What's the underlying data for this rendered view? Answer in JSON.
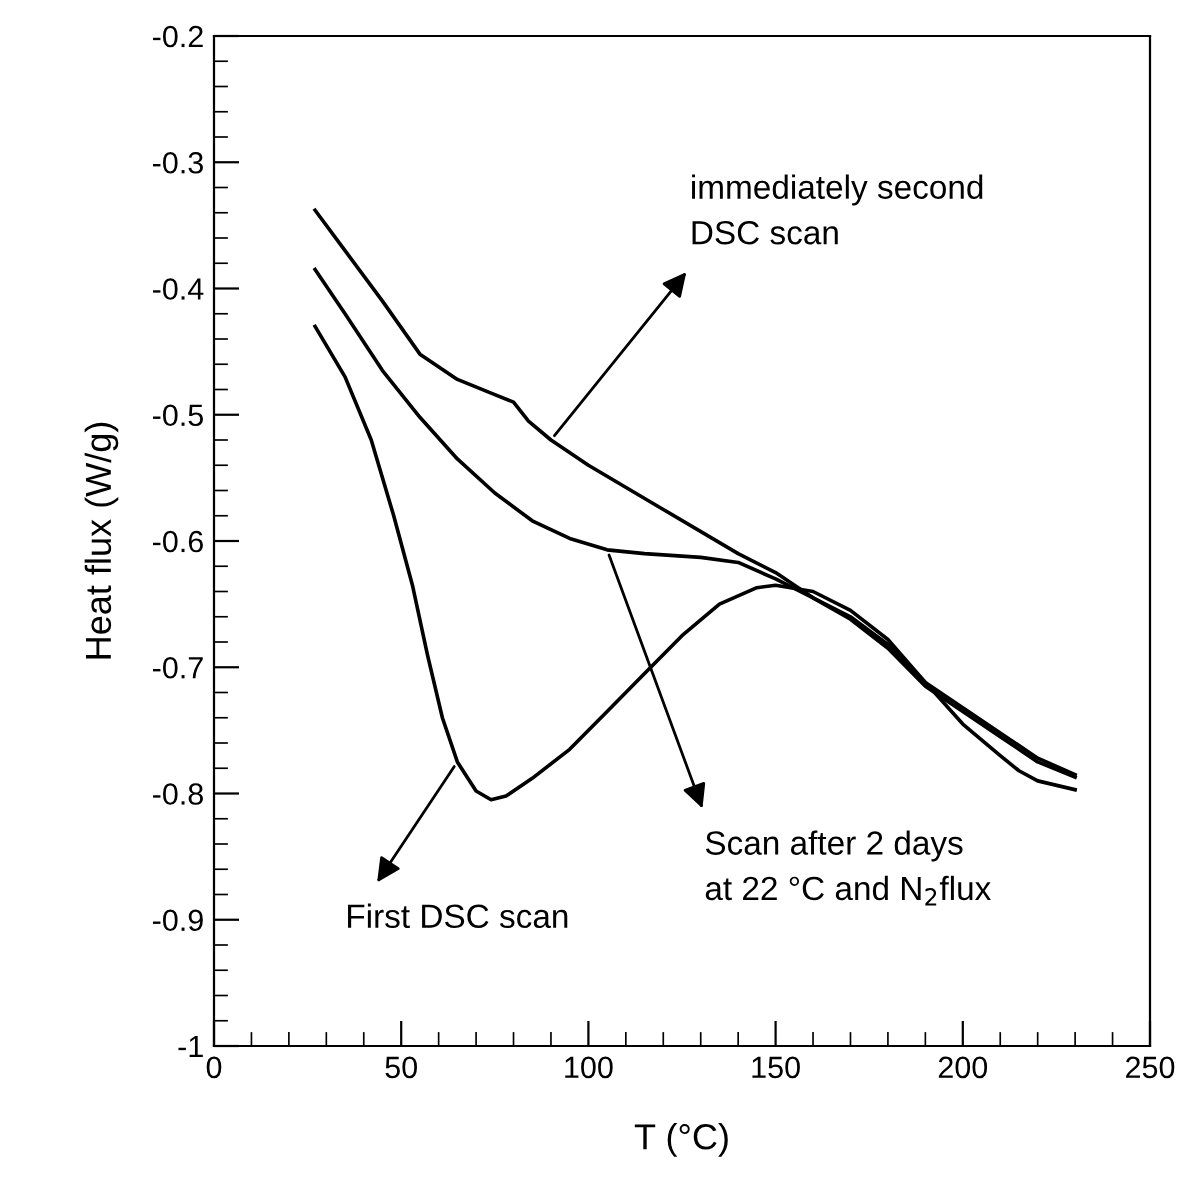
{
  "chart_data": {
    "type": "line",
    "xlabel": "T (°C)",
    "ylabel": "Heat flux (W/g)",
    "xlim": [
      0,
      250
    ],
    "xticks": [
      0,
      50,
      100,
      150,
      200,
      250
    ],
    "ylim": [
      -1,
      -0.2
    ],
    "yticks": [
      -1,
      -0.9,
      -0.8,
      -0.7,
      -0.6,
      -0.5,
      -0.4,
      -0.3,
      -0.2
    ],
    "grid": false,
    "legend": false,
    "series": [
      {
        "color": "#000000",
        "x": [
          27,
          35,
          45,
          55,
          65,
          75,
          80,
          84,
          90,
          100,
          120,
          140,
          150,
          160,
          170,
          180,
          190,
          200,
          210,
          220,
          230
        ],
        "values": [
          -0.338,
          -0.37,
          -0.41,
          -0.452,
          -0.472,
          -0.484,
          -0.49,
          -0.505,
          -0.52,
          -0.54,
          -0.575,
          -0.61,
          -0.625,
          -0.645,
          -0.662,
          -0.685,
          -0.715,
          -0.735,
          -0.755,
          -0.775,
          -0.787
        ]
      },
      {
        "color": "#000000",
        "x": [
          27,
          35,
          45,
          55,
          65,
          75,
          85,
          95,
          105,
          115,
          130,
          140,
          150,
          160,
          170,
          180,
          190,
          200,
          210,
          220,
          230
        ],
        "values": [
          -0.385,
          -0.42,
          -0.465,
          -0.502,
          -0.535,
          -0.562,
          -0.584,
          -0.598,
          -0.607,
          -0.61,
          -0.613,
          -0.617,
          -0.63,
          -0.645,
          -0.66,
          -0.682,
          -0.712,
          -0.732,
          -0.752,
          -0.772,
          -0.785
        ]
      },
      {
        "color": "#000000",
        "x": [
          27,
          35,
          42,
          48,
          53,
          57,
          61,
          65,
          70,
          74,
          78,
          85,
          95,
          105,
          115,
          125,
          135,
          145,
          150,
          160,
          170,
          180,
          190,
          200,
          210,
          215,
          220,
          230
        ],
        "values": [
          -0.43,
          -0.47,
          -0.52,
          -0.58,
          -0.635,
          -0.69,
          -0.74,
          -0.775,
          -0.798,
          -0.805,
          -0.802,
          -0.788,
          -0.765,
          -0.735,
          -0.705,
          -0.675,
          -0.65,
          -0.637,
          -0.635,
          -0.64,
          -0.655,
          -0.678,
          -0.712,
          -0.745,
          -0.77,
          -0.782,
          -0.79,
          -0.797
        ]
      }
    ],
    "annotations": [
      {
        "text": "immediately second\nDSC scan",
        "x": 90,
        "y": -0.52
      },
      {
        "text": "Scan after 2 days\nat 22 °C and N$_{2}$flux",
        "x": 105,
        "y": -0.607
      },
      {
        "text": "First DSC scan",
        "x": 65,
        "y": -0.775
      }
    ]
  }
}
